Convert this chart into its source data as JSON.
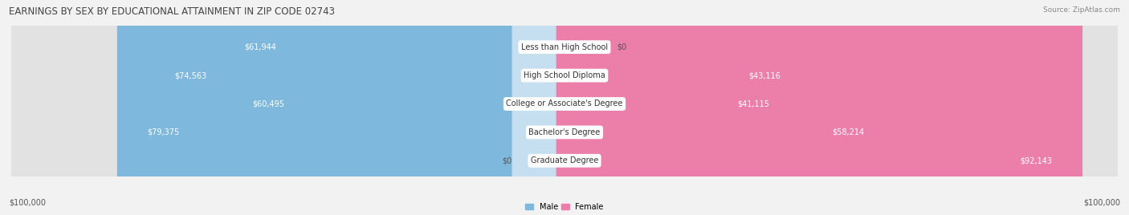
{
  "title": "EARNINGS BY SEX BY EDUCATIONAL ATTAINMENT IN ZIP CODE 02743",
  "source": "Source: ZipAtlas.com",
  "categories": [
    "Less than High School",
    "High School Diploma",
    "College or Associate's Degree",
    "Bachelor's Degree",
    "Graduate Degree"
  ],
  "male_values": [
    61944,
    74563,
    60495,
    79375,
    0
  ],
  "female_values": [
    0,
    43116,
    41115,
    58214,
    92143
  ],
  "male_labels": [
    "$61,944",
    "$74,563",
    "$60,495",
    "$79,375",
    "$0"
  ],
  "female_labels": [
    "$0",
    "$43,116",
    "$41,115",
    "$58,214",
    "$92,143"
  ],
  "male_color": "#7eb8dc",
  "female_color": "#eb7faa",
  "male_color_ghost": "#c5dff0",
  "female_color_ghost": "#f5c0d5",
  "max_value": 100000,
  "axis_label_left": "$100,000",
  "axis_label_right": "$100,000",
  "legend_male": "Male",
  "legend_female": "Female",
  "bg_color": "#f2f2f2",
  "row_bg_color": "#e2e2e2",
  "title_fontsize": 8.5,
  "source_fontsize": 6.5,
  "label_fontsize": 7,
  "category_fontsize": 7,
  "axis_tick_fontsize": 7
}
